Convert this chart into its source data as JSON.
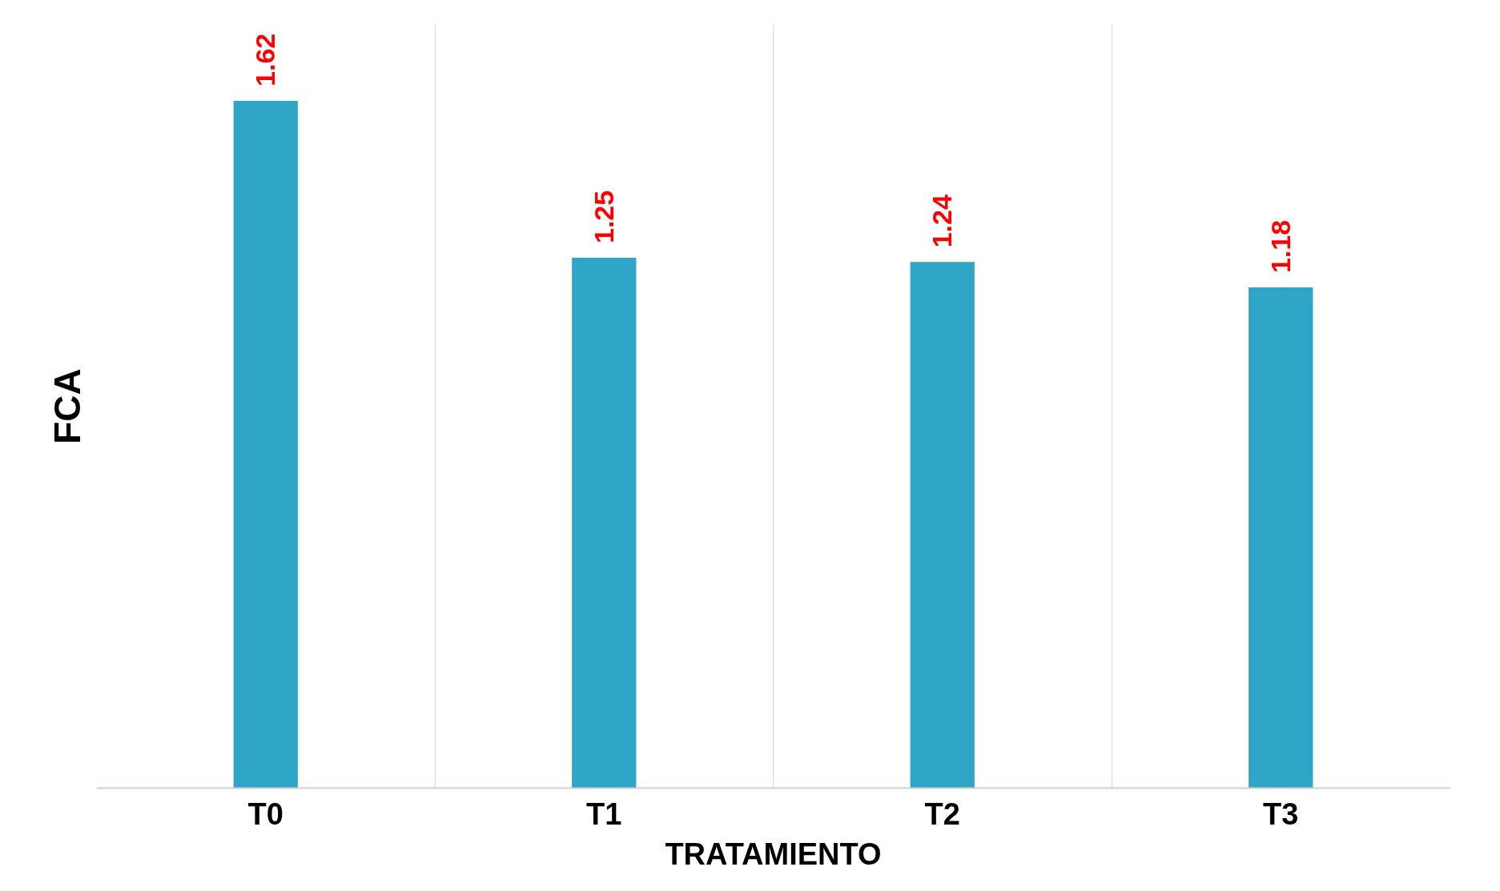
{
  "chart_data": {
    "type": "bar",
    "xlabel": "TRATAMIENTO",
    "ylabel": "FCA",
    "categories": [
      "T0",
      "T1",
      "T2",
      "T3"
    ],
    "values": [
      1.62,
      1.25,
      1.24,
      1.18
    ],
    "color": "#2fa6c8",
    "ylim": [
      0,
      1.8
    ],
    "data_labels": true,
    "grid": "x",
    "tick_labels": "x"
  }
}
